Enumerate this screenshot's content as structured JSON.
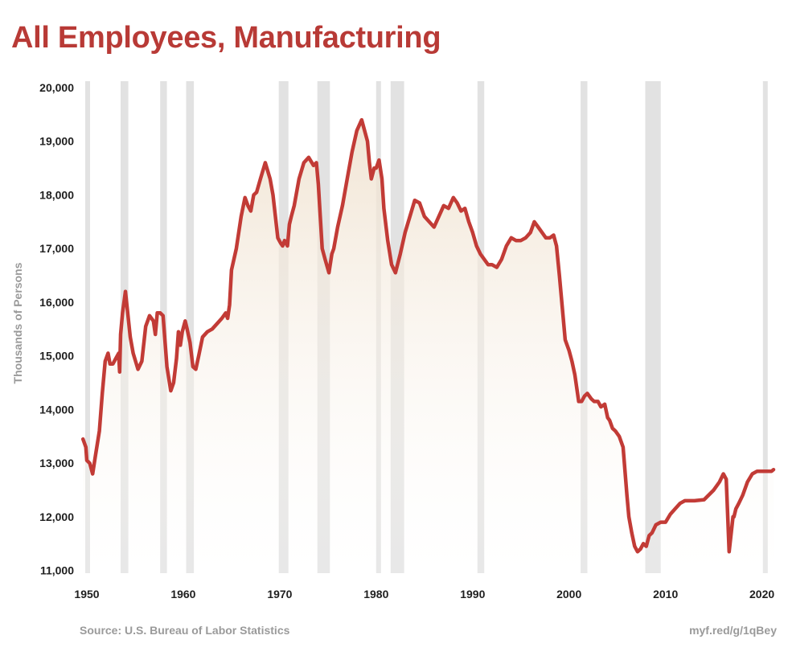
{
  "header": {
    "title": "All Employees, Manufacturing"
  },
  "footer": {
    "source": "Source: U.S. Bureau of Labor Statistics",
    "link": "myf.red/g/1qBey"
  },
  "colors": {
    "title": "#b83a36",
    "line": "#c23b36",
    "recession": "#e2e2e2",
    "fill_top": "#efe0cc",
    "fill_bottom": "#ffffff"
  },
  "chart_data": {
    "type": "line",
    "title": "All Employees, Manufacturing",
    "xlabel": "",
    "ylabel": "Thousands of Persons",
    "xlim": [
      1950,
      2021.2
    ],
    "ylim": [
      11000,
      20000
    ],
    "x_ticks": [
      1950,
      1960,
      1970,
      1980,
      1990,
      2000,
      2010,
      2020
    ],
    "y_ticks": [
      11000,
      12000,
      13000,
      14000,
      15000,
      16000,
      17000,
      18000,
      19000,
      20000
    ],
    "x_tick_labels": [
      "1950",
      "1960",
      "1970",
      "1980",
      "1990",
      "2000",
      "2010",
      "2020"
    ],
    "y_tick_labels": [
      "11,000",
      "12,000",
      "13,000",
      "14,000",
      "15,000",
      "16,000",
      "17,000",
      "18,000",
      "19,000",
      "20,000"
    ],
    "grid": false,
    "recessions": [
      [
        1949.0,
        1949.8
      ],
      [
        1953.5,
        1954.3
      ],
      [
        1957.6,
        1958.3
      ],
      [
        1960.3,
        1961.1
      ],
      [
        1969.9,
        1970.9
      ],
      [
        1973.9,
        1975.2
      ],
      [
        1980.0,
        1980.5
      ],
      [
        1981.5,
        1982.9
      ],
      [
        1990.5,
        1991.2
      ],
      [
        2001.2,
        2001.9
      ],
      [
        2007.9,
        2009.5
      ],
      [
        2020.1,
        2020.4
      ]
    ],
    "series": [
      {
        "name": "",
        "x": [
          1949.6,
          1949.9,
          1950.0,
          1950.3,
          1950.6,
          1950.9,
          1951.3,
          1951.6,
          1951.9,
          1952.2,
          1952.4,
          1952.7,
          1953.0,
          1953.3,
          1953.4,
          1953.5,
          1953.7,
          1954.0,
          1954.5,
          1954.8,
          1955.3,
          1955.7,
          1956.1,
          1956.5,
          1956.9,
          1957.1,
          1957.3,
          1957.6,
          1957.9,
          1958.3,
          1958.7,
          1959.0,
          1959.3,
          1959.5,
          1959.7,
          1959.9,
          1960.2,
          1960.4,
          1960.7,
          1961.0,
          1961.3,
          1961.6,
          1962.0,
          1962.5,
          1963.0,
          1963.5,
          1964.0,
          1964.4,
          1964.6,
          1964.8,
          1965.0,
          1965.5,
          1966.0,
          1966.4,
          1966.7,
          1967.0,
          1967.3,
          1967.6,
          1968.0,
          1968.5,
          1969.0,
          1969.3,
          1969.8,
          1970.1,
          1970.3,
          1970.5,
          1970.8,
          1971.0,
          1971.2,
          1971.5,
          1972.0,
          1972.5,
          1973.0,
          1973.5,
          1973.8,
          1974.0,
          1974.2,
          1974.4,
          1974.7,
          1975.1,
          1975.4,
          1975.6,
          1976.0,
          1976.5,
          1977.0,
          1977.5,
          1978.0,
          1978.5,
          1978.8,
          1979.1,
          1979.3,
          1979.5,
          1979.8,
          1980.0,
          1980.3,
          1980.6,
          1980.8,
          1981.2,
          1981.6,
          1982.0,
          1982.5,
          1983.0,
          1983.5,
          1984.0,
          1984.5,
          1985.0,
          1985.5,
          1986.0,
          1986.5,
          1987.0,
          1987.5,
          1988.0,
          1988.4,
          1988.8,
          1989.2,
          1989.6,
          1990.0,
          1990.4,
          1990.8,
          1991.2,
          1991.6,
          1992.0,
          1992.5,
          1993.0,
          1993.5,
          1994.0,
          1994.5,
          1995.0,
          1995.5,
          1996.0,
          1996.4,
          1996.8,
          1997.2,
          1997.6,
          1998.0,
          1998.4,
          1998.7,
          1999.0,
          1999.3,
          1999.6,
          2000.0,
          2000.3,
          2000.6,
          2001.0,
          2001.3,
          2001.6,
          2001.9,
          2002.3,
          2002.6,
          2003.0,
          2003.3,
          2003.7,
          2004.0,
          2004.2,
          2004.5,
          2004.8,
          2005.2,
          2005.6,
          2006.0,
          2006.2,
          2006.5,
          2006.8,
          2007.1,
          2007.4,
          2007.7,
          2008.0,
          2008.3,
          2008.6,
          2009.0,
          2009.5,
          2010.0,
          2010.5,
          2011.0,
          2011.5,
          2012.0,
          2013.0,
          2014.0,
          2015.0,
          2015.6,
          2016.0,
          2016.3,
          2016.6,
          2017.0,
          2017.1,
          2017.3,
          2017.6,
          2018.0,
          2018.5,
          2019.0,
          2019.5,
          2020.0,
          2020.5,
          2021.0,
          2021.2
        ],
        "y": [
          13450,
          13300,
          13050,
          13000,
          12800,
          13150,
          13600,
          14300,
          14900,
          15050,
          14850,
          14850,
          14950,
          15050,
          14700,
          15400,
          15800,
          16200,
          15350,
          15050,
          14750,
          14900,
          15550,
          15750,
          15650,
          15400,
          15800,
          15800,
          15750,
          14800,
          14350,
          14500,
          14950,
          15450,
          15200,
          15450,
          15650,
          15500,
          15250,
          14800,
          14750,
          15000,
          15350,
          15450,
          15500,
          15600,
          15700,
          15800,
          15700,
          15950,
          16600,
          17000,
          17600,
          17950,
          17800,
          17700,
          18000,
          18050,
          18300,
          18600,
          18300,
          18000,
          17200,
          17100,
          17050,
          17150,
          17050,
          17450,
          17600,
          17800,
          18300,
          18600,
          18700,
          18550,
          18600,
          18200,
          17600,
          17000,
          16800,
          16550,
          16900,
          17000,
          17400,
          17800,
          18300,
          18800,
          19200,
          19400,
          19200,
          19000,
          18600,
          18300,
          18500,
          18500,
          18650,
          18300,
          17750,
          17150,
          16700,
          16550,
          16900,
          17300,
          17600,
          17900,
          17850,
          17600,
          17500,
          17400,
          17600,
          17800,
          17750,
          17950,
          17850,
          17700,
          17750,
          17500,
          17300,
          17050,
          16900,
          16800,
          16700,
          16700,
          16650,
          16800,
          17050,
          17200,
          17150,
          17150,
          17200,
          17300,
          17500,
          17400,
          17300,
          17200,
          17200,
          17250,
          17050,
          16500,
          15900,
          15300,
          15100,
          14900,
          14650,
          14150,
          14150,
          14250,
          14300,
          14200,
          14150,
          14150,
          14050,
          14100,
          13850,
          13800,
          13650,
          13600,
          13500,
          13300,
          12400,
          12000,
          11700,
          11450,
          11350,
          11400,
          11500,
          11450,
          11650,
          11700,
          11850,
          11900,
          11900,
          12050,
          12150,
          12250,
          12300,
          12300,
          12320,
          12500,
          12650,
          12800,
          12700,
          11350,
          12000,
          12000,
          12150,
          12250,
          12400,
          12650,
          12800,
          12850,
          12850,
          12850,
          12850,
          12880
        ]
      }
    ]
  }
}
